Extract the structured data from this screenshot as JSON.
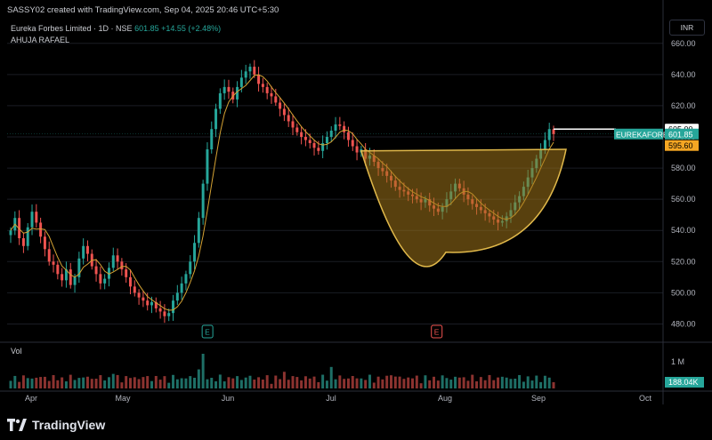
{
  "header": {
    "attribution": "SASSY02 created with TradingView.com, Sep 04, 2025 20:46 UTC+5:30"
  },
  "legend": {
    "symbol_line": "Eureka Forbes Limited · 1D · NSE",
    "price": "601.85",
    "change": "+14.55 (+2.48%)",
    "author": "AHUJA RAFAEL"
  },
  "currency_button": "INR",
  "volume_label": "Vol",
  "brand": "TradingView",
  "colors": {
    "up": "#26a69a",
    "down": "#ef5350",
    "ma": "#d4a233",
    "cup_fill": "#a0741a",
    "cup_stroke": "#e0b84a",
    "grid": "#1a1d24",
    "axis_text": "#b2b5be"
  },
  "chart_data": {
    "type": "candlestick",
    "price_axis": {
      "ticks": [
        "660.00",
        "640.00",
        "620.00",
        "600.00",
        "580.00",
        "560.00",
        "540.00",
        "520.00",
        "500.00",
        "480.00"
      ],
      "range": [
        470,
        665
      ]
    },
    "time_axis": {
      "ticks": [
        "Apr",
        "May",
        "Jun",
        "Jul",
        "Aug",
        "Sep",
        "Oct"
      ]
    },
    "price_labels": [
      {
        "text": "605.00",
        "style": "level"
      },
      {
        "symbol": "EUREKAFORB",
        "text": "601.85",
        "style": "last"
      },
      {
        "text": "595.60",
        "style": "ma"
      }
    ],
    "volume_axis": {
      "ticks": [
        "1 M"
      ],
      "current": "188.04K"
    },
    "annotations": [
      {
        "type": "cup",
        "label": "cup and handle"
      },
      {
        "type": "earnings_marker",
        "text": "E",
        "date": "May 16"
      },
      {
        "type": "earnings_marker",
        "text": "E",
        "date": "Aug 12"
      },
      {
        "type": "resistance_line",
        "value": 605
      }
    ],
    "series": [
      {
        "name": "OHLC",
        "close": [
          540,
          548,
          535,
          530,
          542,
          552,
          545,
          536,
          528,
          520,
          518,
          512,
          508,
          515,
          505,
          510,
          522,
          530,
          525,
          517,
          512,
          506,
          509,
          516,
          524,
          520,
          515,
          510,
          504,
          500,
          497,
          495,
          492,
          494,
          490,
          488,
          485,
          487,
          495,
          500,
          506,
          512,
          520,
          532,
          548,
          570,
          592,
          605,
          618,
          628,
          632,
          629,
          624,
          632,
          638,
          642,
          645,
          640,
          634,
          632,
          628,
          626,
          622,
          618,
          614,
          610,
          606,
          603,
          600,
          598,
          596,
          593,
          591,
          596,
          600,
          604,
          608,
          607,
          603,
          598,
          594,
          590,
          592,
          586,
          588,
          584,
          580,
          578,
          575,
          572,
          568,
          566,
          565,
          563,
          562,
          560,
          558,
          560,
          556,
          554,
          552,
          555,
          560,
          565,
          570,
          567,
          563,
          560,
          557,
          555,
          553,
          551,
          549,
          547,
          545,
          546,
          549,
          553,
          558,
          562,
          568,
          574,
          580,
          586,
          592,
          598,
          605,
          601.85
        ]
      }
    ]
  }
}
